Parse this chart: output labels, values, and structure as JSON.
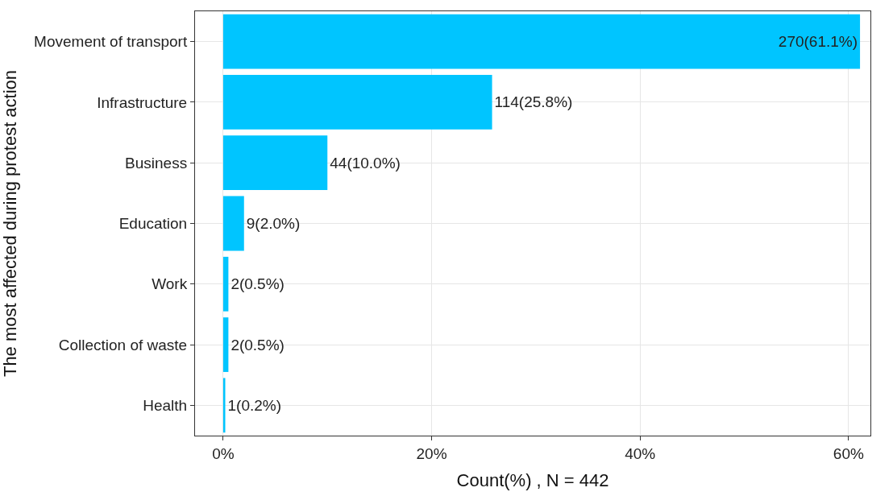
{
  "chart_data": {
    "type": "bar",
    "orientation": "horizontal",
    "xlabel": "Count(%) , N = 442",
    "ylabel": "The most affected during protest action",
    "categories": [
      "Movement of transport",
      "Infrastructure",
      "Business",
      "Education",
      "Work",
      "Collection of waste",
      "Health"
    ],
    "values": [
      61.1,
      25.8,
      10.0,
      2.0,
      0.5,
      0.5,
      0.2
    ],
    "value_labels": [
      "270(61.1%)",
      "114(25.8%)",
      "44(10.0%)",
      "9(2.0%)",
      "2(0.5%)",
      "2(0.5%)",
      "1(0.2%)"
    ],
    "color": "#00c5ff",
    "xlim": [
      -2.7,
      62.1
    ],
    "xticks": [
      {
        "value": 0,
        "label": "0%"
      },
      {
        "value": 20,
        "label": "20%"
      },
      {
        "value": 40,
        "label": "40%"
      },
      {
        "value": 60,
        "label": "60%"
      }
    ],
    "grid": true
  }
}
